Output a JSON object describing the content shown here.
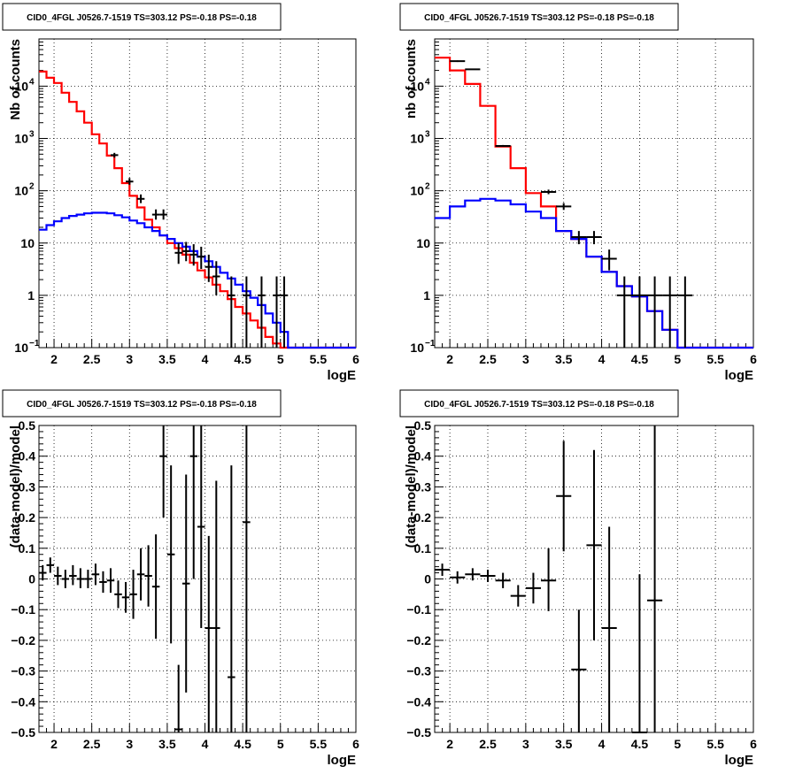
{
  "chart_data": [
    {
      "type": "step-histogram",
      "title": "CID0_4FGL J0526.7-1519 TS=303.12 PS=-0.18 PS=-0.18",
      "xlabel": "logE",
      "ylabel": "Nb of counts",
      "xlim": [
        1.8,
        6.0
      ],
      "ylim": [
        0.1,
        80000
      ],
      "yscale": "log",
      "grid": true,
      "xticks": [
        2,
        2.5,
        3,
        3.5,
        4,
        4.5,
        5,
        5.5,
        6
      ],
      "xtick_labels": [
        "2",
        "2.5",
        "3",
        "3.5",
        "4",
        "4.5",
        "5",
        "5.5",
        "6"
      ],
      "yticks": [
        {
          "value": 0.1,
          "base": "10",
          "exp": "−1"
        },
        {
          "value": 1,
          "label": "1"
        },
        {
          "value": 10,
          "label": "10"
        },
        {
          "value": 100,
          "base": "10",
          "exp": "2"
        },
        {
          "value": 1000,
          "base": "10",
          "exp": "3"
        },
        {
          "value": 10000,
          "base": "10",
          "exp": "4"
        }
      ],
      "bin_edges": [
        1.8,
        1.9,
        2.0,
        2.1,
        2.2,
        2.3,
        2.4,
        2.5,
        2.6,
        2.7,
        2.8,
        2.9,
        3.0,
        3.1,
        3.2,
        3.3,
        3.4,
        3.5,
        3.6,
        3.7,
        3.8,
        3.9,
        4.0,
        4.1,
        4.2,
        4.3,
        4.4,
        4.5,
        4.6,
        4.7,
        4.8,
        4.9,
        5.0,
        5.1,
        5.2,
        5.3,
        5.4,
        5.5,
        5.6,
        5.7,
        5.8,
        5.9,
        6.0
      ],
      "series": [
        {
          "color": "#ff0000",
          "style": "step",
          "values": [
            19000,
            14500,
            11500,
            7500,
            5000,
            3300,
            2000,
            1200,
            800,
            470,
            270,
            140,
            80,
            48,
            28,
            20,
            14,
            10,
            8,
            6,
            4.2,
            3.0,
            2.2,
            1.6,
            1.2,
            0.85,
            0.6,
            0.45,
            0.33,
            0.24,
            0.16,
            0.12,
            0.1,
            0.1,
            0.1,
            0.1,
            0.1,
            0.1,
            0.1,
            0.1,
            0.1,
            0.1
          ]
        },
        {
          "color": "#0000ff",
          "style": "step",
          "values": [
            18,
            22,
            26,
            30,
            33,
            35,
            37,
            38,
            38,
            37,
            34,
            31,
            27,
            24,
            20,
            17,
            14,
            12,
            10,
            8.5,
            7,
            5.5,
            4.5,
            3.5,
            2.7,
            2.1,
            1.6,
            1.2,
            0.9,
            0.65,
            0.45,
            0.3,
            0.2,
            0.1,
            0.1,
            0.1,
            0.1,
            0.1,
            0.1,
            0.1,
            0.1,
            0.1
          ]
        },
        {
          "color": "#000000",
          "style": "errorbar",
          "points": [
            {
              "x": 2.8,
              "y": 480,
              "xerr": 0.05,
              "lo": 430,
              "hi": 530
            },
            {
              "x": 3.0,
              "y": 150,
              "xerr": 0.05,
              "lo": 130,
              "hi": 175
            },
            {
              "x": 3.15,
              "y": 70,
              "xerr": 0.05,
              "lo": 58,
              "hi": 85
            },
            {
              "x": 3.35,
              "y": 35,
              "xerr": 0.05,
              "lo": 28,
              "hi": 44
            },
            {
              "x": 3.45,
              "y": 35,
              "xerr": 0.05,
              "lo": 28,
              "hi": 44
            },
            {
              "x": 3.65,
              "y": 6.5,
              "xerr": 0.05,
              "lo": 4,
              "hi": 10
            },
            {
              "x": 3.75,
              "y": 7,
              "xerr": 0.05,
              "lo": 4.5,
              "hi": 10.5
            },
            {
              "x": 3.85,
              "y": 6,
              "xerr": 0.05,
              "lo": 3.7,
              "hi": 9.5
            },
            {
              "x": 3.95,
              "y": 5.5,
              "xerr": 0.05,
              "lo": 3.2,
              "hi": 8.5
            },
            {
              "x": 4.05,
              "y": 3.5,
              "xerr": 0.05,
              "lo": 1.8,
              "hi": 6
            },
            {
              "x": 4.15,
              "y": 2.3,
              "xerr": 0.05,
              "lo": 1,
              "hi": 4.5
            },
            {
              "x": 4.35,
              "y": 1,
              "xerr": 0.05,
              "lo": 0.1,
              "hi": 2.3
            },
            {
              "x": 4.55,
              "y": 1,
              "xerr": 0.05,
              "lo": 0.1,
              "hi": 2.3
            },
            {
              "x": 4.75,
              "y": 1,
              "xerr": 0.05,
              "lo": 0.1,
              "hi": 2.3
            },
            {
              "x": 4.95,
              "y": 1,
              "xerr": 0.05,
              "lo": 0.1,
              "hi": 2.3
            },
            {
              "x": 5.05,
              "y": 1,
              "xerr": 0.05,
              "lo": 0.1,
              "hi": 2.3
            }
          ]
        }
      ]
    },
    {
      "type": "step-histogram",
      "title": "CID0_4FGL J0526.7-1519 TS=303.12 PS=-0.18 PS=-0.18",
      "xlabel": "logE",
      "ylabel": "nb of counts",
      "xlim": [
        1.8,
        6.0
      ],
      "ylim": [
        0.1,
        80000
      ],
      "yscale": "log",
      "grid": true,
      "xticks": [
        2,
        2.5,
        3,
        3.5,
        4,
        4.5,
        5,
        5.5,
        6
      ],
      "xtick_labels": [
        "2",
        "2.5",
        "3",
        "3.5",
        "4",
        "4.5",
        "5",
        "5.5",
        "6"
      ],
      "yticks": [
        {
          "value": 0.1,
          "base": "10",
          "exp": "−1"
        },
        {
          "value": 1,
          "label": "1"
        },
        {
          "value": 10,
          "label": "10"
        },
        {
          "value": 100,
          "base": "10",
          "exp": "2"
        },
        {
          "value": 1000,
          "base": "10",
          "exp": "3"
        },
        {
          "value": 10000,
          "base": "10",
          "exp": "4"
        }
      ],
      "bin_edges": [
        1.8,
        2.0,
        2.2,
        2.4,
        2.6,
        2.8,
        3.0,
        3.2,
        3.4,
        3.6,
        3.8,
        4.0,
        4.2,
        4.4,
        4.6,
        4.8,
        5.0,
        5.2,
        5.4,
        5.6,
        5.8,
        6.0
      ],
      "series": [
        {
          "color": "#ff0000",
          "style": "step",
          "values": [
            35000,
            20000,
            11000,
            4200,
            700,
            270,
            90,
            50,
            17,
            12,
            5.5,
            2.8,
            1.5,
            0.95,
            0.5,
            0.22,
            0.1,
            0.1,
            0.1,
            0.1,
            0.1
          ]
        },
        {
          "color": "#0000ff",
          "style": "step",
          "values": [
            30,
            50,
            65,
            70,
            65,
            55,
            40,
            30,
            17,
            12,
            5.5,
            2.8,
            1.5,
            0.95,
            0.5,
            0.22,
            0.1,
            0.1,
            0.1,
            0.1,
            0.1
          ]
        },
        {
          "color": "#000000",
          "style": "errorbar",
          "points": [
            {
              "x": 2.1,
              "y": 30000,
              "xerr": 0.1,
              "lo": 29000,
              "hi": 31000
            },
            {
              "x": 2.3,
              "y": 21000,
              "xerr": 0.1,
              "lo": 20500,
              "hi": 21500
            },
            {
              "x": 2.7,
              "y": 720,
              "xerr": 0.1,
              "lo": 690,
              "hi": 750
            },
            {
              "x": 3.3,
              "y": 95,
              "xerr": 0.1,
              "lo": 86,
              "hi": 105
            },
            {
              "x": 3.5,
              "y": 50,
              "xerr": 0.1,
              "lo": 43,
              "hi": 58
            },
            {
              "x": 3.7,
              "y": 13,
              "xerr": 0.1,
              "lo": 9.5,
              "hi": 17
            },
            {
              "x": 3.9,
              "y": 13,
              "xerr": 0.1,
              "lo": 9.5,
              "hi": 17
            },
            {
              "x": 4.1,
              "y": 5,
              "xerr": 0.1,
              "lo": 3,
              "hi": 7.5
            },
            {
              "x": 4.3,
              "y": 1,
              "xerr": 0.1,
              "lo": 0.1,
              "hi": 2.3
            },
            {
              "x": 4.5,
              "y": 1,
              "xerr": 0.1,
              "lo": 0.1,
              "hi": 2.3
            },
            {
              "x": 4.7,
              "y": 1,
              "xerr": 0.1,
              "lo": 0.1,
              "hi": 2.3
            },
            {
              "x": 4.9,
              "y": 1,
              "xerr": 0.1,
              "lo": 0.1,
              "hi": 2.3
            },
            {
              "x": 5.1,
              "y": 1,
              "xerr": 0.1,
              "lo": 0.1,
              "hi": 2.3
            }
          ]
        }
      ]
    },
    {
      "type": "errorbar",
      "title": "CID0_4FGL J0526.7-1519 TS=303.12 PS=-0.18 PS=-0.18",
      "xlabel": "logE",
      "ylabel": "(data-model)/model",
      "xlim": [
        1.8,
        6.0
      ],
      "ylim": [
        -0.5,
        0.5
      ],
      "yscale": "linear",
      "grid": true,
      "xticks": [
        2,
        2.5,
        3,
        3.5,
        4,
        4.5,
        5,
        5.5,
        6
      ],
      "xtick_labels": [
        "2",
        "2.5",
        "3",
        "3.5",
        "4",
        "4.5",
        "5",
        "5.5",
        "6"
      ],
      "yticks": [
        -0.5,
        -0.4,
        -0.3,
        -0.2,
        -0.1,
        0,
        0.1,
        0.2,
        0.3,
        0.4,
        0.5
      ],
      "ytick_labels": [
        "−0.5",
        "−0.4",
        "−0.3",
        "−0.2",
        "−0.1",
        "0",
        "0.1",
        "0.2",
        "0.3",
        "0.4",
        "0.5"
      ],
      "series": [
        {
          "color": "#000000",
          "points": [
            {
              "x": 1.85,
              "y": 0.02,
              "xerr": 0.05,
              "lo": -0.005,
              "hi": 0.045
            },
            {
              "x": 1.95,
              "y": 0.045,
              "xerr": 0.05,
              "lo": 0.02,
              "hi": 0.07
            },
            {
              "x": 2.05,
              "y": 0.01,
              "xerr": 0.05,
              "lo": -0.02,
              "hi": 0.04
            },
            {
              "x": 2.15,
              "y": 0.0,
              "xerr": 0.05,
              "lo": -0.03,
              "hi": 0.03
            },
            {
              "x": 2.25,
              "y": 0.01,
              "xerr": 0.05,
              "lo": -0.02,
              "hi": 0.045
            },
            {
              "x": 2.35,
              "y": 0.0,
              "xerr": 0.05,
              "lo": -0.03,
              "hi": 0.035
            },
            {
              "x": 2.45,
              "y": 0.0,
              "xerr": 0.05,
              "lo": -0.03,
              "hi": 0.03
            },
            {
              "x": 2.55,
              "y": 0.015,
              "xerr": 0.05,
              "lo": -0.02,
              "hi": 0.05
            },
            {
              "x": 2.65,
              "y": -0.01,
              "xerr": 0.05,
              "lo": -0.045,
              "hi": 0.025
            },
            {
              "x": 2.75,
              "y": -0.005,
              "xerr": 0.05,
              "lo": -0.045,
              "hi": 0.035
            },
            {
              "x": 2.85,
              "y": -0.05,
              "xerr": 0.05,
              "lo": -0.095,
              "hi": -0.005
            },
            {
              "x": 2.95,
              "y": -0.06,
              "xerr": 0.05,
              "lo": -0.11,
              "hi": -0.01
            },
            {
              "x": 3.05,
              "y": -0.05,
              "xerr": 0.05,
              "lo": -0.13,
              "hi": 0.03
            },
            {
              "x": 3.15,
              "y": 0.015,
              "xerr": 0.05,
              "lo": -0.07,
              "hi": 0.1
            },
            {
              "x": 3.25,
              "y": 0.01,
              "xerr": 0.05,
              "lo": -0.09,
              "hi": 0.11
            },
            {
              "x": 3.35,
              "y": -0.025,
              "xerr": 0.05,
              "lo": -0.195,
              "hi": 0.145
            },
            {
              "x": 3.45,
              "y": 0.4,
              "xerr": 0.05,
              "lo": 0.2,
              "hi": 0.5
            },
            {
              "x": 3.55,
              "y": 0.08,
              "xerr": 0.05,
              "lo": -0.21,
              "hi": 0.37
            },
            {
              "x": 3.65,
              "y": -0.49,
              "xerr": 0.05,
              "lo": -0.5,
              "hi": -0.28
            },
            {
              "x": 3.75,
              "y": -0.015,
              "xerr": 0.05,
              "lo": -0.37,
              "hi": 0.34
            },
            {
              "x": 3.85,
              "y": 0.4,
              "xerr": 0.05,
              "lo": 0.0,
              "hi": 0.5
            },
            {
              "x": 3.95,
              "y": 0.17,
              "xerr": 0.05,
              "lo": -0.16,
              "hi": 0.5
            },
            {
              "x": 4.05,
              "y": -0.16,
              "xerr": 0.05,
              "lo": -0.5,
              "hi": 0.14
            },
            {
              "x": 4.15,
              "y": -0.16,
              "xerr": 0.05,
              "lo": -0.5,
              "hi": 0.32
            },
            {
              "x": 4.35,
              "y": -0.32,
              "xerr": 0.05,
              "lo": -0.5,
              "hi": 0.37
            },
            {
              "x": 4.55,
              "y": 0.185,
              "xerr": 0.05,
              "lo": -0.5,
              "hi": 0.5
            }
          ]
        }
      ]
    },
    {
      "type": "errorbar",
      "title": "CID0_4FGL J0526.7-1519 TS=303.12 PS=-0.18 PS=-0.18",
      "xlabel": "logE",
      "ylabel": "(data-model)/model",
      "xlim": [
        1.8,
        6.0
      ],
      "ylim": [
        -0.5,
        0.5
      ],
      "yscale": "linear",
      "grid": true,
      "xticks": [
        2,
        2.5,
        3,
        3.5,
        4,
        4.5,
        5,
        5.5,
        6
      ],
      "xtick_labels": [
        "2",
        "2.5",
        "3",
        "3.5",
        "4",
        "4.5",
        "5",
        "5.5",
        "6"
      ],
      "yticks": [
        -0.5,
        -0.4,
        -0.3,
        -0.2,
        -0.1,
        0,
        0.1,
        0.2,
        0.3,
        0.4,
        0.5
      ],
      "ytick_labels": [
        "−0.5",
        "−0.4",
        "−0.3",
        "−0.2",
        "−0.1",
        "0",
        "0.1",
        "0.2",
        "0.3",
        "0.4",
        "0.5"
      ],
      "series": [
        {
          "color": "#000000",
          "points": [
            {
              "x": 1.9,
              "y": 0.03,
              "xerr": 0.1,
              "lo": 0.01,
              "hi": 0.05
            },
            {
              "x": 2.1,
              "y": 0.005,
              "xerr": 0.1,
              "lo": -0.015,
              "hi": 0.025
            },
            {
              "x": 2.3,
              "y": 0.015,
              "xerr": 0.1,
              "lo": -0.005,
              "hi": 0.035
            },
            {
              "x": 2.5,
              "y": 0.01,
              "xerr": 0.1,
              "lo": -0.01,
              "hi": 0.03
            },
            {
              "x": 2.7,
              "y": -0.005,
              "xerr": 0.1,
              "lo": -0.03,
              "hi": 0.02
            },
            {
              "x": 2.9,
              "y": -0.055,
              "xerr": 0.1,
              "lo": -0.09,
              "hi": -0.02
            },
            {
              "x": 3.1,
              "y": -0.03,
              "xerr": 0.1,
              "lo": -0.08,
              "hi": 0.02
            },
            {
              "x": 3.3,
              "y": -0.005,
              "xerr": 0.1,
              "lo": -0.105,
              "hi": 0.1
            },
            {
              "x": 3.5,
              "y": 0.27,
              "xerr": 0.1,
              "lo": 0.09,
              "hi": 0.45
            },
            {
              "x": 3.7,
              "y": -0.295,
              "xerr": 0.1,
              "lo": -0.5,
              "hi": -0.1
            },
            {
              "x": 3.9,
              "y": 0.11,
              "xerr": 0.1,
              "lo": -0.2,
              "hi": 0.42
            },
            {
              "x": 4.1,
              "y": -0.16,
              "xerr": 0.1,
              "lo": -0.5,
              "hi": 0.17
            },
            {
              "x": 4.5,
              "y": -0.5,
              "xerr": 0.1,
              "lo": -0.5,
              "hi": 0.015
            },
            {
              "x": 4.7,
              "y": -0.07,
              "xerr": 0.1,
              "lo": -0.5,
              "hi": 0.5
            }
          ]
        }
      ]
    }
  ]
}
